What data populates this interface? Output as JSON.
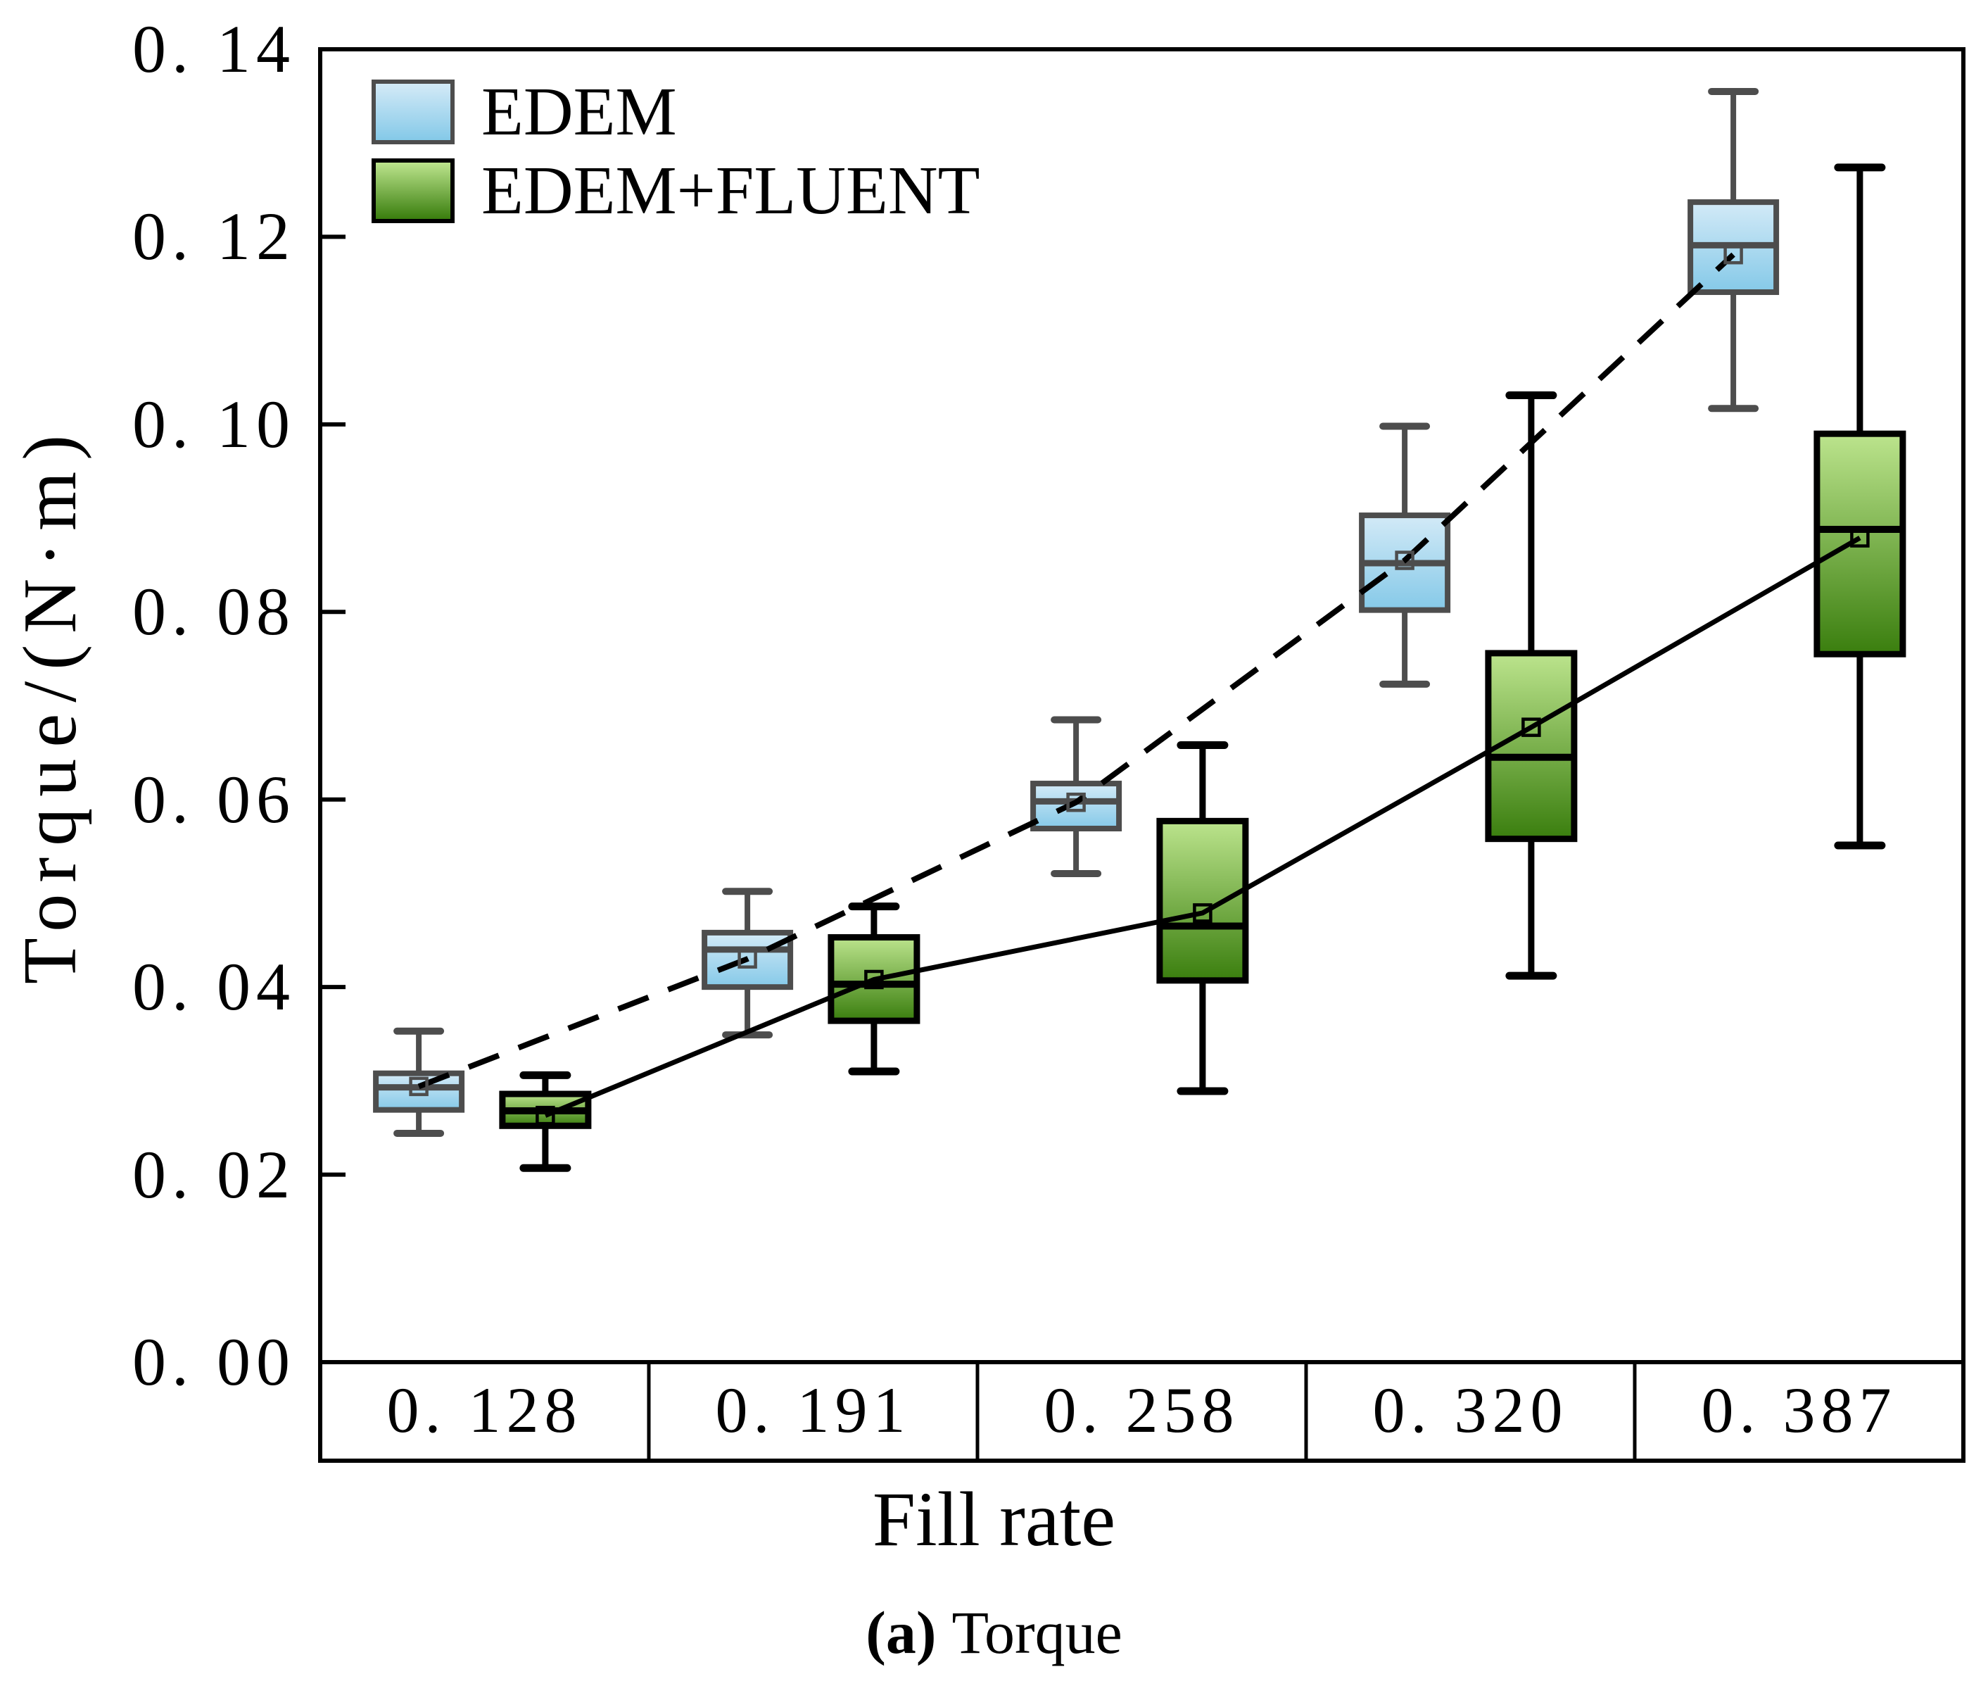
{
  "figure": {
    "caption": {
      "prefix": "(a)",
      "text": "Torque"
    },
    "colors": {
      "edem_box_top": "#d3eaf7",
      "edem_box_bottom": "#85c9e8",
      "edem_stroke": "#4d4d4d",
      "fluent_box_top": "#bce48d",
      "fluent_box_bottom": "#3a7e0e",
      "fluent_stroke": "#000000",
      "mean_line": "#000000",
      "frame": "#000000"
    }
  },
  "chart_data": {
    "type": "boxplot",
    "title": "",
    "xlabel": "Fill rate",
    "ylabel": "Torque/(N·m)",
    "ylim": [
      0,
      0.14
    ],
    "grid": false,
    "legend_position": "top-left",
    "y_ticks": [
      0,
      0.02,
      0.04,
      0.06,
      0.08,
      0.1,
      0.12,
      0.14
    ],
    "y_tick_labels": [
      "0. 00",
      "0. 02",
      "0. 04",
      "0. 06",
      "0. 08",
      "0. 10",
      "0. 12",
      "0. 14"
    ],
    "categories": [
      0.128,
      0.191,
      0.258,
      0.32,
      0.387
    ],
    "category_labels": [
      "0. 128",
      "0. 191",
      "0. 258",
      "0. 320",
      "0. 387"
    ],
    "series": [
      {
        "name": "EDEM",
        "line_style": "dashed",
        "boxes": [
          {
            "whisker_low": 0.0244,
            "q1": 0.0269,
            "median": 0.0293,
            "q3": 0.0308,
            "whisker_high": 0.0353,
            "mean": 0.0294
          },
          {
            "whisker_low": 0.0349,
            "q1": 0.04,
            "median": 0.044,
            "q3": 0.0458,
            "whisker_high": 0.0502,
            "mean": 0.043
          },
          {
            "whisker_low": 0.0521,
            "q1": 0.0569,
            "median": 0.0598,
            "q3": 0.0617,
            "whisker_high": 0.0685,
            "mean": 0.0597
          },
          {
            "whisker_low": 0.0723,
            "q1": 0.0802,
            "median": 0.0852,
            "q3": 0.0903,
            "whisker_high": 0.0998,
            "mean": 0.0855
          },
          {
            "whisker_low": 0.1017,
            "q1": 0.1141,
            "median": 0.1191,
            "q3": 0.1237,
            "whisker_high": 0.1355,
            "mean": 0.1181
          }
        ]
      },
      {
        "name": "EDEM+FLUENT",
        "line_style": "solid",
        "boxes": [
          {
            "whisker_low": 0.0207,
            "q1": 0.0252,
            "median": 0.0268,
            "q3": 0.0286,
            "whisker_high": 0.0306,
            "mean": 0.0263
          },
          {
            "whisker_low": 0.031,
            "q1": 0.0364,
            "median": 0.0403,
            "q3": 0.0453,
            "whisker_high": 0.0486,
            "mean": 0.0408
          },
          {
            "whisker_low": 0.0289,
            "q1": 0.0407,
            "median": 0.0465,
            "q3": 0.0577,
            "whisker_high": 0.0658,
            "mean": 0.0479
          },
          {
            "whisker_low": 0.0412,
            "q1": 0.0558,
            "median": 0.0645,
            "q3": 0.0756,
            "whisker_high": 0.1031,
            "mean": 0.0677
          },
          {
            "whisker_low": 0.0551,
            "q1": 0.0755,
            "median": 0.0888,
            "q3": 0.099,
            "whisker_high": 0.1274,
            "mean": 0.0879
          }
        ]
      }
    ]
  }
}
